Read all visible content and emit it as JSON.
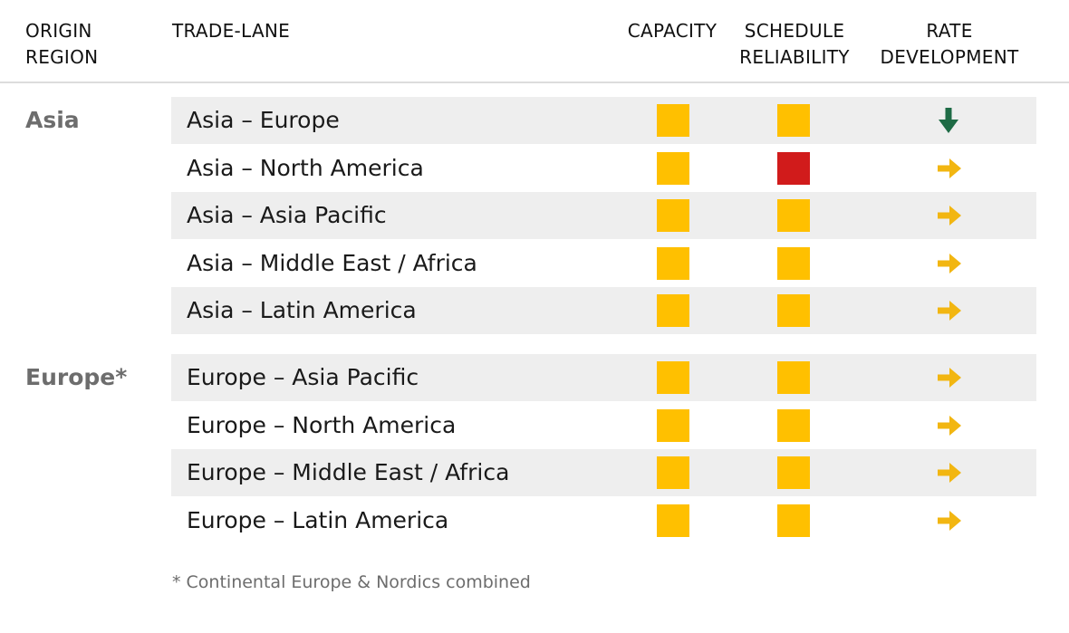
{
  "colors": {
    "amber": "#FFC000",
    "red": "#D11B1B",
    "green": "#1E6B45",
    "arrow_amber": "#F2B611"
  },
  "header": {
    "origin_region": [
      "ORIGIN",
      "REGION"
    ],
    "trade_lane": "TRADE-LANE",
    "capacity": "CAPACITY",
    "schedule_reliability": [
      "SCHEDULE",
      "RELIABILITY"
    ],
    "rate_development": [
      "RATE",
      "DEVELOPMENT"
    ]
  },
  "regions": [
    {
      "name": "Asia",
      "lanes": [
        {
          "lane": "Asia – Europe",
          "capacity": "amber",
          "schedule_reliability": "amber",
          "rate_development": "down"
        },
        {
          "lane": "Asia – North America",
          "capacity": "amber",
          "schedule_reliability": "red",
          "rate_development": "right"
        },
        {
          "lane": "Asia – Asia Pacific",
          "capacity": "amber",
          "schedule_reliability": "amber",
          "rate_development": "right"
        },
        {
          "lane": "Asia – Middle East / Africa",
          "capacity": "amber",
          "schedule_reliability": "amber",
          "rate_development": "right"
        },
        {
          "lane": "Asia – Latin America",
          "capacity": "amber",
          "schedule_reliability": "amber",
          "rate_development": "right"
        }
      ]
    },
    {
      "name": "Europe*",
      "lanes": [
        {
          "lane": "Europe – Asia Pacific",
          "capacity": "amber",
          "schedule_reliability": "amber",
          "rate_development": "right"
        },
        {
          "lane": "Europe – North America",
          "capacity": "amber",
          "schedule_reliability": "amber",
          "rate_development": "right"
        },
        {
          "lane": "Europe – Middle East / Africa",
          "capacity": "amber",
          "schedule_reliability": "amber",
          "rate_development": "right"
        },
        {
          "lane": "Europe – Latin America",
          "capacity": "amber",
          "schedule_reliability": "amber",
          "rate_development": "right"
        }
      ]
    }
  ],
  "footnote": "* Continental Europe & Nordics combined",
  "chart_data": {
    "type": "table",
    "columns": [
      "ORIGIN REGION",
      "TRADE-LANE",
      "CAPACITY",
      "SCHEDULE RELIABILITY",
      "RATE DEVELOPMENT"
    ],
    "rows": [
      [
        "Asia",
        "Asia – Europe",
        "amber",
        "amber",
        "down"
      ],
      [
        "Asia",
        "Asia – North America",
        "amber",
        "red",
        "right"
      ],
      [
        "Asia",
        "Asia – Asia Pacific",
        "amber",
        "amber",
        "right"
      ],
      [
        "Asia",
        "Asia – Middle East / Africa",
        "amber",
        "amber",
        "right"
      ],
      [
        "Asia",
        "Asia – Latin America",
        "amber",
        "amber",
        "right"
      ],
      [
        "Europe*",
        "Europe – Asia Pacific",
        "amber",
        "amber",
        "right"
      ],
      [
        "Europe*",
        "Europe – North America",
        "amber",
        "amber",
        "right"
      ],
      [
        "Europe*",
        "Europe – Middle East / Africa",
        "amber",
        "amber",
        "right"
      ],
      [
        "Europe*",
        "Europe – Latin America",
        "amber",
        "amber",
        "right"
      ]
    ]
  }
}
